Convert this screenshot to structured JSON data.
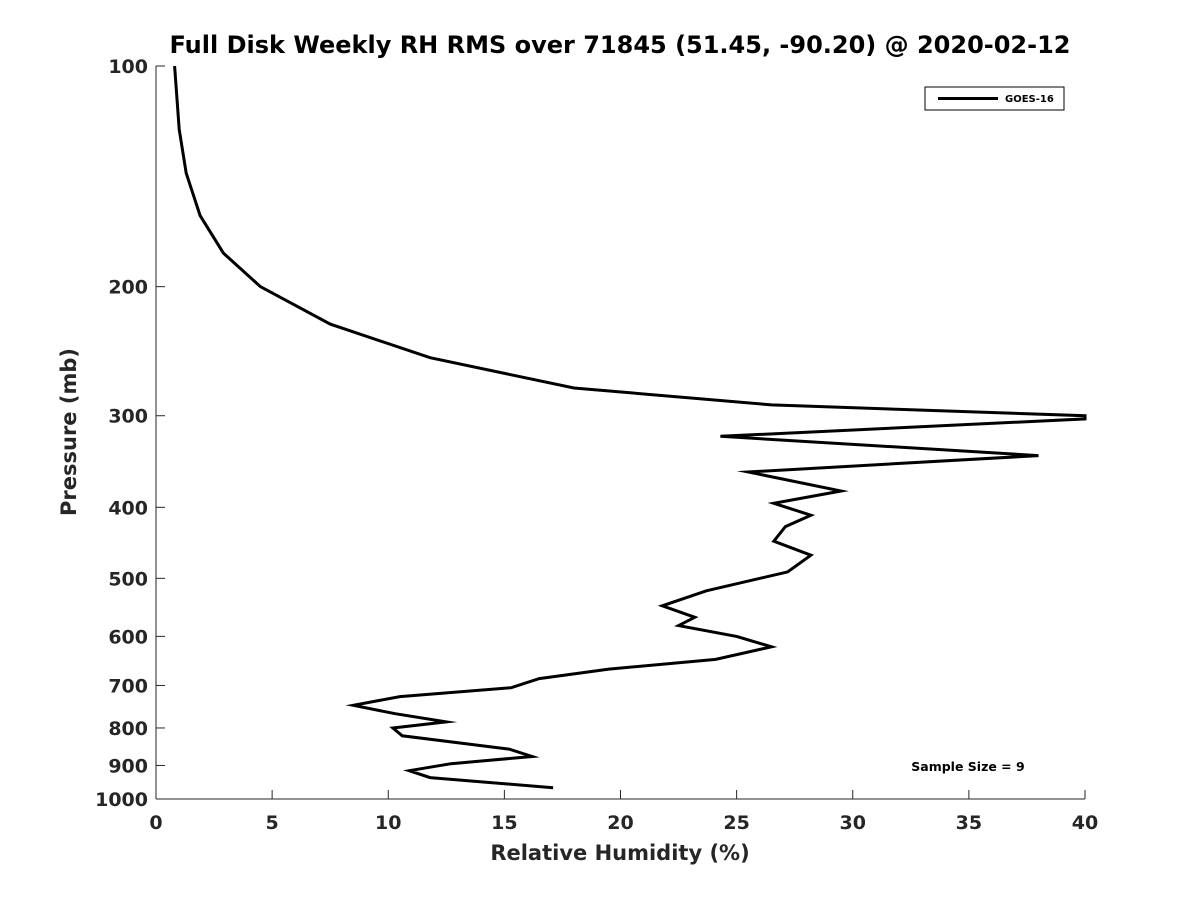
{
  "chart_data": {
    "type": "line",
    "title": "Full Disk Weekly RH RMS over 71845 (51.45, -90.20) @ 2020-02-12",
    "xlabel": "Relative Humidity (%)",
    "ylabel": "Pressure (mb)",
    "xlim": [
      0,
      40
    ],
    "ylim": [
      100,
      1000
    ],
    "yscale": "log",
    "yreversed": true,
    "grid": false,
    "xticks": [
      0,
      5,
      10,
      15,
      20,
      25,
      30,
      35,
      40
    ],
    "yticks": [
      100,
      200,
      300,
      400,
      500,
      600,
      700,
      800,
      900,
      1000
    ],
    "legend_position": "top-right",
    "annotation": "Sample Size = 9",
    "series": [
      {
        "name": "GOES-16",
        "color": "#000000",
        "x": [
          0.8,
          1.0,
          1.3,
          1.9,
          2.9,
          4.5,
          7.5,
          11.8,
          18.0,
          26.5,
          40.0,
          40.0,
          24.3,
          38.0,
          25.5,
          29.5,
          26.6,
          28.2,
          27.1,
          26.6,
          28.2,
          27.2,
          23.7,
          21.8,
          23.2,
          22.5,
          25.0,
          26.5,
          24.1,
          19.5,
          16.5,
          15.3,
          10.5,
          8.5,
          10.3,
          12.5,
          10.2,
          10.6,
          15.2,
          16.2,
          12.7,
          10.9,
          11.8,
          17.1
        ],
        "y": [
          100,
          122,
          140,
          160,
          180,
          200,
          225,
          250,
          275,
          290,
          300,
          303,
          320,
          340,
          358,
          380,
          395,
          410,
          425,
          445,
          465,
          490,
          520,
          545,
          565,
          580,
          600,
          620,
          645,
          665,
          685,
          705,
          725,
          745,
          765,
          785,
          800,
          820,
          855,
          875,
          895,
          915,
          935,
          965
        ]
      }
    ]
  }
}
